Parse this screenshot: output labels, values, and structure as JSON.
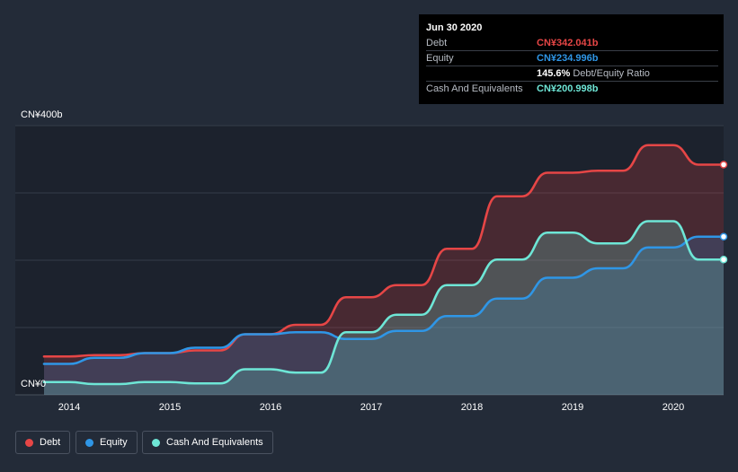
{
  "colors": {
    "debt": "#e64646",
    "equity": "#2f96e6",
    "cash": "#6ee6d6",
    "background": "#232b38",
    "plot_background": "#1c222d"
  },
  "tooltip": {
    "date": "Jun 30 2020",
    "rows": [
      {
        "name": "Debt",
        "value": "CN¥342.041b",
        "color": "#e64646"
      },
      {
        "name": "Equity",
        "value": "CN¥234.996b",
        "color": "#2f96e6"
      },
      {
        "name": "",
        "value": "145.6%",
        "extra": "Debt/Equity Ratio",
        "color": "#ffffff"
      },
      {
        "name": "Cash And Equivalents",
        "value": "CN¥200.998b",
        "color": "#6ee6d6"
      }
    ]
  },
  "legend": [
    {
      "label": "Debt",
      "color": "#e64646"
    },
    {
      "label": "Equity",
      "color": "#2f96e6"
    },
    {
      "label": "Cash And Equivalents",
      "color": "#6ee6d6"
    }
  ],
  "chart_data": {
    "type": "area",
    "title": "",
    "xlabel": "",
    "ylabel": "",
    "y_top_label": "CN¥400b",
    "y_bottom_label": "CN¥0",
    "ylim": [
      0,
      400
    ],
    "xlim": [
      2013.75,
      2020.5
    ],
    "x_ticks": [
      2014,
      2015,
      2016,
      2017,
      2018,
      2019,
      2020
    ],
    "x_tick_labels": [
      "2014",
      "2015",
      "2016",
      "2017",
      "2018",
      "2019",
      "2020"
    ],
    "grid": true,
    "legend_position": "bottom-left",
    "series": [
      {
        "name": "Debt",
        "color": "#e64646",
        "x": [
          2013.75,
          2014.0,
          2014.25,
          2014.5,
          2014.75,
          2015.0,
          2015.25,
          2015.5,
          2015.75,
          2016.0,
          2016.25,
          2016.5,
          2016.75,
          2017.0,
          2017.25,
          2017.5,
          2017.75,
          2018.0,
          2018.25,
          2018.5,
          2018.75,
          2019.0,
          2019.25,
          2019.5,
          2019.75,
          2020.0,
          2020.25,
          2020.5
        ],
        "values": [
          57,
          57,
          59,
          59,
          62,
          62,
          66,
          66,
          90,
          90,
          104,
          104,
          145,
          145,
          163,
          163,
          217,
          217,
          295,
          295,
          330,
          330,
          333,
          333,
          371,
          371,
          342,
          342
        ]
      },
      {
        "name": "Equity",
        "color": "#2f96e6",
        "x": [
          2013.75,
          2014.0,
          2014.25,
          2014.5,
          2014.75,
          2015.0,
          2015.25,
          2015.5,
          2015.75,
          2016.0,
          2016.25,
          2016.5,
          2016.75,
          2017.0,
          2017.25,
          2017.5,
          2017.75,
          2018.0,
          2018.25,
          2018.5,
          2018.75,
          2019.0,
          2019.25,
          2019.5,
          2019.75,
          2020.0,
          2020.25,
          2020.5
        ],
        "values": [
          46,
          46,
          55,
          55,
          62,
          62,
          70,
          70,
          90,
          90,
          93,
          93,
          83,
          83,
          95,
          95,
          117,
          117,
          143,
          143,
          174,
          174,
          188,
          188,
          219,
          219,
          235,
          235
        ]
      },
      {
        "name": "Cash And Equivalents",
        "color": "#6ee6d6",
        "x": [
          2013.75,
          2014.0,
          2014.25,
          2014.5,
          2014.75,
          2015.0,
          2015.25,
          2015.5,
          2015.75,
          2016.0,
          2016.25,
          2016.5,
          2016.75,
          2017.0,
          2017.25,
          2017.5,
          2017.75,
          2018.0,
          2018.25,
          2018.5,
          2018.75,
          2019.0,
          2019.25,
          2019.5,
          2019.75,
          2020.0,
          2020.25,
          2020.5
        ],
        "values": [
          19,
          19,
          16,
          16,
          19,
          19,
          17,
          17,
          38,
          38,
          33,
          33,
          93,
          93,
          119,
          119,
          163,
          163,
          201,
          201,
          241,
          241,
          225,
          225,
          258,
          258,
          201,
          201
        ]
      }
    ],
    "markers_at_last_point": true
  }
}
